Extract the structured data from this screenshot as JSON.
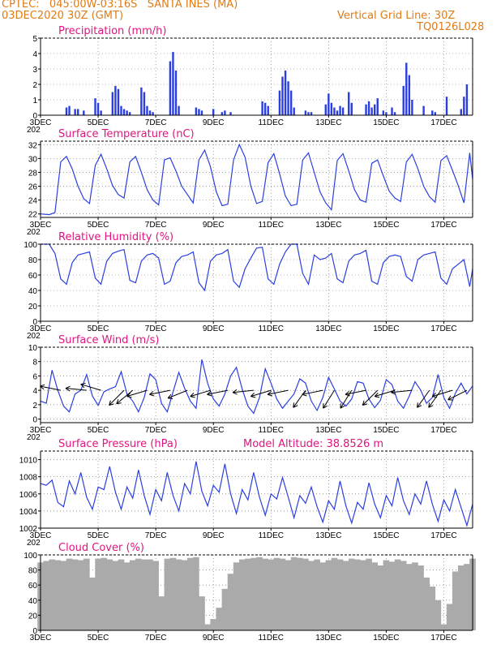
{
  "header": {
    "line1_left": "CPTEC:   045:00W-03:16S   SANTA INES (MA)",
    "line2_left": "03DEC2020 30Z (GMT)",
    "line2_right": "Vertical Grid Line: 30Z",
    "line3_right": "TQ0126L028"
  },
  "x_ticks": [
    "3DEC",
    "5DEC",
    "7DEC",
    "9DEC",
    "11DEC",
    "13DEC",
    "15DEC",
    "17DEC"
  ],
  "year_stub": "202",
  "colors": {
    "line": "#2b3fe0",
    "bar": "#2b3fe0",
    "cloud": "#aaaaaa",
    "title": "#e0157f",
    "header": "#e07b17"
  },
  "chart_data": [
    {
      "type": "bar",
      "title": "Precipitation (mm/h)",
      "ylim": [
        0,
        5
      ],
      "yticks": [
        "0",
        "1",
        "2",
        "3",
        "4",
        "5"
      ],
      "x": [
        3.9,
        4.0,
        4.2,
        4.3,
        4.5,
        4.9,
        5.0,
        5.1,
        5.5,
        5.6,
        5.7,
        5.8,
        5.9,
        6.0,
        6.1,
        6.5,
        6.6,
        6.7,
        6.8,
        6.9,
        7.5,
        7.6,
        7.7,
        7.8,
        8.4,
        8.5,
        8.6,
        9.0,
        9.3,
        9.4,
        9.6,
        10.7,
        10.8,
        10.9,
        11.3,
        11.4,
        11.5,
        11.6,
        11.7,
        11.8,
        12.2,
        12.3,
        12.4,
        12.9,
        13.0,
        13.1,
        13.2,
        13.3,
        13.4,
        13.5,
        13.7,
        13.8,
        14.3,
        14.4,
        14.5,
        14.6,
        14.7,
        14.9,
        15.0,
        15.2,
        15.3,
        15.6,
        15.7,
        15.8,
        15.9,
        16.3,
        16.6,
        16.7,
        17.1,
        17.6,
        17.7,
        17.8
      ],
      "values": [
        0.5,
        0.6,
        0.4,
        0.4,
        0.3,
        1.1,
        0.8,
        0.3,
        1.5,
        1.9,
        1.7,
        0.6,
        0.4,
        0.3,
        0.2,
        1.8,
        1.5,
        0.6,
        0.3,
        0.2,
        3.5,
        4.1,
        2.9,
        0.6,
        0.5,
        0.4,
        0.3,
        0.4,
        0.2,
        0.3,
        0.2,
        0.9,
        0.8,
        0.6,
        1.6,
        2.5,
        2.9,
        2.2,
        1.6,
        0.5,
        0.3,
        0.2,
        0.2,
        0.7,
        1.4,
        0.8,
        0.5,
        0.3,
        0.6,
        0.5,
        1.5,
        0.8,
        0.7,
        0.9,
        0.5,
        0.7,
        1.1,
        0.3,
        0.2,
        0.5,
        0.2,
        1.9,
        3.4,
        2.6,
        1.0,
        0.6,
        0.3,
        0.2,
        1.2,
        0.4,
        1.2,
        2.0
      ]
    },
    {
      "type": "line",
      "title": "Surface Temperature (nC)",
      "ylim": [
        21.5,
        32.5
      ],
      "yticks": [
        "22",
        "24",
        "26",
        "28",
        "30",
        "32"
      ],
      "x": [
        3.0,
        3.3,
        3.5,
        3.7,
        3.9,
        4.1,
        4.3,
        4.5,
        4.7,
        4.9,
        5.1,
        5.3,
        5.5,
        5.7,
        5.9,
        6.1,
        6.3,
        6.5,
        6.7,
        6.9,
        7.1,
        7.3,
        7.5,
        7.7,
        7.9,
        8.1,
        8.3,
        8.5,
        8.7,
        8.9,
        9.1,
        9.3,
        9.5,
        9.7,
        9.9,
        10.1,
        10.3,
        10.5,
        10.7,
        10.9,
        11.1,
        11.3,
        11.5,
        11.7,
        11.9,
        12.1,
        12.3,
        12.5,
        12.7,
        12.9,
        13.1,
        13.3,
        13.5,
        13.7,
        13.9,
        14.1,
        14.3,
        14.5,
        14.7,
        14.9,
        15.1,
        15.3,
        15.5,
        15.7,
        15.9,
        16.1,
        16.3,
        16.5,
        16.7,
        16.9,
        17.1,
        17.3,
        17.5,
        17.7,
        17.9,
        18.0
      ],
      "values": [
        22.0,
        21.9,
        22.2,
        29.5,
        30.3,
        28.5,
        26.0,
        24.2,
        23.5,
        29.0,
        30.6,
        28.5,
        26.1,
        24.8,
        24.3,
        29.5,
        30.3,
        28.0,
        25.5,
        24.0,
        23.3,
        29.8,
        30.1,
        28.2,
        26.0,
        24.8,
        23.6,
        29.8,
        31.2,
        28.8,
        25.2,
        23.2,
        23.4,
        29.8,
        32.0,
        30.2,
        26.0,
        23.5,
        23.8,
        29.4,
        30.7,
        27.8,
        24.6,
        23.2,
        23.4,
        29.8,
        30.8,
        28.0,
        25.2,
        23.6,
        22.6,
        29.7,
        30.7,
        28.2,
        25.5,
        24.0,
        23.7,
        29.3,
        29.8,
        27.5,
        25.3,
        24.3,
        23.8,
        29.5,
        30.6,
        28.5,
        26.0,
        24.5,
        23.7,
        29.7,
        30.4,
        28.3,
        26.1,
        23.6,
        30.8,
        27.0
      ]
    },
    {
      "type": "line",
      "title": "Relative Humidity (%)",
      "ylim": [
        0,
        100
      ],
      "yticks": [
        "0",
        "20",
        "40",
        "60",
        "80",
        "100"
      ],
      "x": [
        3.0,
        3.3,
        3.5,
        3.7,
        3.9,
        4.1,
        4.3,
        4.5,
        4.7,
        4.9,
        5.1,
        5.3,
        5.5,
        5.7,
        5.9,
        6.1,
        6.3,
        6.5,
        6.7,
        6.9,
        7.1,
        7.3,
        7.5,
        7.7,
        7.9,
        8.1,
        8.3,
        8.5,
        8.7,
        8.9,
        9.1,
        9.3,
        9.5,
        9.7,
        9.9,
        10.1,
        10.3,
        10.5,
        10.7,
        10.9,
        11.1,
        11.3,
        11.5,
        11.7,
        11.9,
        12.1,
        12.3,
        12.5,
        12.7,
        12.9,
        13.1,
        13.3,
        13.5,
        13.7,
        13.9,
        14.1,
        14.3,
        14.5,
        14.7,
        14.9,
        15.1,
        15.3,
        15.5,
        15.7,
        15.9,
        16.1,
        16.3,
        16.5,
        16.7,
        16.9,
        17.1,
        17.3,
        17.5,
        17.7,
        17.9,
        18.0
      ],
      "values": [
        100,
        100,
        88,
        55,
        48,
        76,
        86,
        88,
        90,
        56,
        48,
        78,
        88,
        91,
        93,
        53,
        50,
        78,
        86,
        88,
        82,
        48,
        52,
        76,
        84,
        86,
        90,
        50,
        40,
        78,
        86,
        88,
        93,
        52,
        44,
        68,
        82,
        95,
        96,
        55,
        48,
        74,
        90,
        100,
        100,
        62,
        48,
        86,
        80,
        82,
        88,
        55,
        50,
        78,
        86,
        88,
        92,
        52,
        48,
        76,
        84,
        86,
        84,
        58,
        52,
        80,
        86,
        88,
        90,
        56,
        48,
        68,
        74,
        80,
        45,
        68
      ]
    },
    {
      "type": "line",
      "title": "Surface Wind (m/s)",
      "ylim": [
        -0.5,
        10
      ],
      "yticks": [
        "0",
        "2",
        "4",
        "6",
        "8",
        "10"
      ],
      "x": [
        3.0,
        3.2,
        3.4,
        3.6,
        3.8,
        4.0,
        4.2,
        4.4,
        4.6,
        4.8,
        5.0,
        5.2,
        5.4,
        5.6,
        5.8,
        6.0,
        6.2,
        6.4,
        6.6,
        6.8,
        7.0,
        7.2,
        7.4,
        7.6,
        7.8,
        8.0,
        8.2,
        8.4,
        8.6,
        8.8,
        9.0,
        9.2,
        9.4,
        9.6,
        9.8,
        10.0,
        10.2,
        10.4,
        10.6,
        10.8,
        11.0,
        11.2,
        11.4,
        11.6,
        11.8,
        12.0,
        12.2,
        12.4,
        12.6,
        12.8,
        13.0,
        13.2,
        13.4,
        13.6,
        13.8,
        14.0,
        14.2,
        14.4,
        14.6,
        14.8,
        15.0,
        15.2,
        15.4,
        15.6,
        15.8,
        16.0,
        16.2,
        16.4,
        16.6,
        16.8,
        17.0,
        17.2,
        17.4,
        17.6,
        17.8,
        18.0
      ],
      "values": [
        2.5,
        2.2,
        6.8,
        4.0,
        1.8,
        1.0,
        3.5,
        4.0,
        6.2,
        3.2,
        1.9,
        3.8,
        4.2,
        4.5,
        6.6,
        3.5,
        2.5,
        1.0,
        3.0,
        6.3,
        5.5,
        2.2,
        1.0,
        3.8,
        6.5,
        4.3,
        2.5,
        1.5,
        8.3,
        5.0,
        2.8,
        1.8,
        3.5,
        6.0,
        7.2,
        4.2,
        1.8,
        0.8,
        3.0,
        7.0,
        5.0,
        2.8,
        1.5,
        2.5,
        3.5,
        5.6,
        5.0,
        2.5,
        1.2,
        3.0,
        5.8,
        4.2,
        2.5,
        1.8,
        2.8,
        5.2,
        5.0,
        2.8,
        1.6,
        2.6,
        5.5,
        4.8,
        2.5,
        1.5,
        3.2,
        5.2,
        4.0,
        2.2,
        3.0,
        6.2,
        3.0,
        1.5,
        3.6,
        5.0,
        3.5,
        4.6
      ],
      "arrows": [
        {
          "x": 3.7,
          "u": 1,
          "v": -0.2
        },
        {
          "x": 4.6,
          "u": 1,
          "v": -0.1
        },
        {
          "x": 5.1,
          "u": 1,
          "v": -0.3
        },
        {
          "x": 5.9,
          "u": 0.6,
          "v": 0.6
        },
        {
          "x": 6.2,
          "u": 0.6,
          "v": 0.5
        },
        {
          "x": 6.7,
          "u": 1,
          "v": 0.3
        },
        {
          "x": 7.5,
          "u": 1,
          "v": 0.2
        },
        {
          "x": 8.1,
          "u": 1,
          "v": 0.4
        },
        {
          "x": 8.9,
          "u": 1,
          "v": 0.3
        },
        {
          "x": 9.5,
          "u": 1,
          "v": 0.2
        },
        {
          "x": 10.4,
          "u": 1,
          "v": 0.1
        },
        {
          "x": 11.0,
          "u": 1,
          "v": 0.3
        },
        {
          "x": 11.6,
          "u": 1,
          "v": 0.2
        },
        {
          "x": 12.2,
          "u": 0.5,
          "v": 0.7
        },
        {
          "x": 12.8,
          "u": 1,
          "v": 0.2
        },
        {
          "x": 13.2,
          "u": 0.5,
          "v": 0.8
        },
        {
          "x": 13.8,
          "u": 0.5,
          "v": 0.8
        },
        {
          "x": 14.3,
          "u": 1,
          "v": 0.2
        },
        {
          "x": 14.7,
          "u": 0.6,
          "v": 0.6
        },
        {
          "x": 15.3,
          "u": 1,
          "v": 0.3
        },
        {
          "x": 15.9,
          "u": 1,
          "v": 0.1
        },
        {
          "x": 16.5,
          "u": 0.5,
          "v": 0.7
        },
        {
          "x": 16.9,
          "u": 0.5,
          "v": 0.7
        },
        {
          "x": 17.3,
          "u": 1,
          "v": 0.3
        },
        {
          "x": 17.8,
          "u": 1,
          "v": 0.5
        }
      ]
    },
    {
      "type": "line",
      "title": "Surface Pressure (hPa)",
      "annotation": "Model Altitude: 38.8526 m",
      "ylim": [
        1002,
        1011
      ],
      "yticks": [
        "1002",
        "1004",
        "1006",
        "1008",
        "1010"
      ],
      "x": [
        3.0,
        3.2,
        3.4,
        3.6,
        3.8,
        4.0,
        4.2,
        4.4,
        4.6,
        4.8,
        5.0,
        5.2,
        5.4,
        5.6,
        5.8,
        6.0,
        6.2,
        6.4,
        6.6,
        6.8,
        7.0,
        7.2,
        7.4,
        7.6,
        7.8,
        8.0,
        8.2,
        8.4,
        8.6,
        8.8,
        9.0,
        9.2,
        9.4,
        9.6,
        9.8,
        10.0,
        10.2,
        10.4,
        10.6,
        10.8,
        11.0,
        11.2,
        11.4,
        11.6,
        11.8,
        12.0,
        12.2,
        12.4,
        12.6,
        12.8,
        13.0,
        13.2,
        13.4,
        13.6,
        13.8,
        14.0,
        14.2,
        14.4,
        14.6,
        14.8,
        15.0,
        15.2,
        15.4,
        15.6,
        15.8,
        16.0,
        16.2,
        16.4,
        16.6,
        16.8,
        17.0,
        17.2,
        17.4,
        17.6,
        17.8,
        18.0
      ],
      "values": [
        1007.2,
        1007.0,
        1007.6,
        1005.0,
        1004.5,
        1007.5,
        1006.0,
        1008.5,
        1005.6,
        1004.2,
        1006.8,
        1006.5,
        1009.2,
        1006.2,
        1004.2,
        1006.8,
        1005.5,
        1008.8,
        1005.8,
        1003.6,
        1006.5,
        1005.2,
        1008.5,
        1005.8,
        1004.0,
        1007.2,
        1006.0,
        1009.8,
        1006.3,
        1004.6,
        1007.0,
        1006.2,
        1009.5,
        1006.0,
        1003.7,
        1006.5,
        1005.3,
        1008.5,
        1005.6,
        1003.5,
        1006.0,
        1005.4,
        1007.9,
        1005.6,
        1003.2,
        1005.8,
        1004.9,
        1006.8,
        1004.5,
        1002.7,
        1005.2,
        1004.2,
        1007.5,
        1004.6,
        1002.6,
        1005.0,
        1004.2,
        1007.3,
        1004.8,
        1003.2,
        1005.8,
        1004.6,
        1007.9,
        1005.2,
        1003.6,
        1006.0,
        1004.8,
        1007.5,
        1004.8,
        1002.8,
        1005.3,
        1004.0,
        1006.5,
        1004.4,
        1002.3,
        1004.8
      ]
    },
    {
      "type": "area",
      "title": "Cloud Cover (%)",
      "ylim": [
        0,
        100
      ],
      "yticks": [
        "0",
        "20",
        "40",
        "60",
        "80",
        "100"
      ],
      "x": [
        3.0,
        3.2,
        3.4,
        3.6,
        3.8,
        4.0,
        4.2,
        4.4,
        4.6,
        4.8,
        5.0,
        5.2,
        5.4,
        5.6,
        5.8,
        6.0,
        6.2,
        6.4,
        6.6,
        6.8,
        7.0,
        7.2,
        7.4,
        7.6,
        7.8,
        8.0,
        8.2,
        8.4,
        8.6,
        8.8,
        9.0,
        9.2,
        9.4,
        9.6,
        9.8,
        10.0,
        10.2,
        10.4,
        10.6,
        10.8,
        11.0,
        11.2,
        11.4,
        11.6,
        11.8,
        12.0,
        12.2,
        12.4,
        12.6,
        12.8,
        13.0,
        13.2,
        13.4,
        13.6,
        13.8,
        14.0,
        14.2,
        14.4,
        14.6,
        14.8,
        15.0,
        15.2,
        15.4,
        15.6,
        15.8,
        16.0,
        16.2,
        16.4,
        16.6,
        16.8,
        17.0,
        17.2,
        17.4,
        17.6,
        17.8,
        18.0
      ],
      "values": [
        90,
        92,
        94,
        93,
        92,
        95,
        94,
        93,
        95,
        70,
        95,
        96,
        94,
        92,
        94,
        90,
        93,
        95,
        94,
        94,
        92,
        45,
        95,
        96,
        94,
        93,
        96,
        97,
        45,
        8,
        15,
        30,
        55,
        75,
        90,
        94,
        95,
        96,
        97,
        95,
        94,
        96,
        95,
        93,
        97,
        96,
        95,
        92,
        94,
        90,
        93,
        96,
        94,
        92,
        95,
        94,
        93,
        95,
        90,
        86,
        93,
        91,
        94,
        92,
        88,
        90,
        86,
        70,
        58,
        40,
        8,
        35,
        78,
        86,
        88,
        95
      ]
    }
  ]
}
